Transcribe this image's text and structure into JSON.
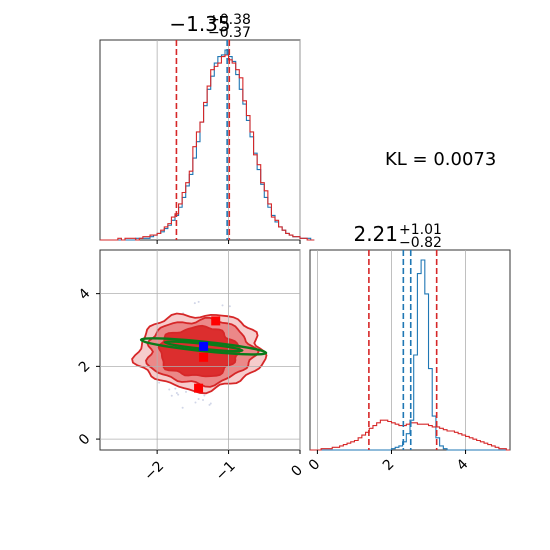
{
  "chart_data": [
    {
      "type": "histogram",
      "panel": "marginal-param1",
      "title": {
        "median": "−1.35",
        "plus": "+0.38",
        "minus": "−0.37"
      },
      "xlim": [
        -2.8,
        0
      ],
      "bin_edges_start": -2.8,
      "bin_width": 0.05,
      "series": [
        {
          "color": "#1f77b4",
          "values": [
            0,
            0,
            0,
            0,
            0,
            0,
            0,
            0,
            0,
            0,
            1,
            1,
            1,
            1,
            2,
            3,
            4,
            5,
            7,
            9,
            12,
            15,
            20,
            26,
            33,
            40,
            50,
            60,
            72,
            82,
            92,
            100,
            108,
            112,
            113,
            116,
            112,
            109,
            101,
            92,
            83,
            73,
            63,
            53,
            43,
            34,
            26,
            20,
            15,
            11,
            8,
            6,
            4,
            3,
            2,
            2,
            1,
            1,
            1,
            0
          ]
        },
        {
          "color": "#d62728",
          "values": [
            0,
            0,
            0,
            0,
            0,
            1,
            0,
            1,
            1,
            1,
            0,
            1,
            2,
            2,
            3,
            3,
            4,
            6,
            8,
            10,
            14,
            16,
            22,
            29,
            35,
            42,
            57,
            66,
            72,
            84,
            94,
            104,
            106,
            108,
            112,
            113,
            110,
            108,
            104,
            99,
            85,
            76,
            66,
            52,
            46,
            35,
            30,
            22,
            14,
            12,
            8,
            6,
            4,
            3,
            2,
            2,
            1,
            1,
            0,
            0
          ]
        }
      ],
      "quantiles": {
        "blue": [
          -1.02
        ],
        "red": [
          -1.73,
          -0.99
        ]
      }
    },
    {
      "type": "histogram",
      "panel": "marginal-param2",
      "title": {
        "median": "2.21",
        "plus": "+1.01",
        "minus": "−0.82"
      },
      "xlim": [
        -0.2,
        5.2
      ],
      "bin_edges_start": -0.2,
      "bin_width": 0.1,
      "series": [
        {
          "color": "#1f77b4",
          "values": [
            0,
            0,
            0,
            0,
            0,
            0,
            0,
            0,
            0,
            0,
            0,
            0,
            0,
            0,
            0,
            0,
            0,
            0,
            0,
            0,
            0,
            0,
            1,
            2,
            3,
            6,
            12,
            22,
            70,
            130,
            140,
            115,
            60,
            25,
            9,
            3,
            1,
            0,
            0,
            0,
            0,
            0,
            0,
            0,
            0,
            0,
            0,
            0,
            0,
            0,
            0,
            0,
            0,
            0
          ]
        },
        {
          "color": "#d62728",
          "values": [
            0,
            0,
            0,
            1,
            1,
            1,
            2,
            2,
            3,
            4,
            5,
            6,
            7,
            9,
            11,
            13,
            16,
            18,
            20,
            22,
            22,
            21,
            20,
            19,
            18,
            18,
            19,
            20,
            20,
            19,
            19,
            19,
            18,
            17,
            17,
            16,
            15,
            14,
            14,
            13,
            12,
            11,
            10,
            9,
            8,
            7,
            6,
            5,
            4,
            3,
            2,
            1,
            1,
            0
          ]
        }
      ],
      "quantiles": {
        "blue": [
          2.32,
          2.52
        ],
        "red": [
          1.39,
          3.22
        ]
      }
    },
    {
      "type": "scatter-contour",
      "panel": "joint",
      "xlim": [
        -2.8,
        0
      ],
      "ylim": [
        -0.3,
        5.2
      ],
      "contours_red": [
        {
          "center": [
            -1.4,
            2.4
          ],
          "rx": 0.88,
          "ry": 2.0,
          "fill": "#f6cccc"
        },
        {
          "center": [
            -1.4,
            2.4
          ],
          "rx": 0.74,
          "ry": 1.7,
          "fill": "#eb8888"
        },
        {
          "center": [
            -1.42,
            2.4
          ],
          "rx": 0.55,
          "ry": 1.3,
          "fill": "#dc2e2e"
        }
      ],
      "ellipse_green": {
        "center": [
          -1.35,
          2.55
        ],
        "rx": 0.88,
        "ry": 0.13,
        "rotation_deg": 6
      },
      "red_markers": [
        [
          -1.18,
          3.25
        ],
        [
          -1.35,
          2.25
        ],
        [
          -1.42,
          1.4
        ]
      ],
      "blue_marker": [
        -1.35,
        2.55
      ]
    }
  ],
  "kl": "KL = 0.0073",
  "axes": {
    "x_param1_ticks": [
      "−2",
      "−1",
      "0"
    ],
    "x_param1_tick_values": [
      -2,
      -1,
      0
    ],
    "y_param2_ticks": [
      "0",
      "2",
      "4"
    ],
    "y_param2_tick_values": [
      0,
      2,
      4
    ],
    "x_param2_ticks": [
      "0",
      "2",
      "4"
    ],
    "x_param2_tick_values": [
      0,
      2,
      4
    ]
  },
  "colors": {
    "blue": "#1f77b4",
    "red": "#d62728",
    "green": "#0a7a1a",
    "grid": "#b0b0b0"
  }
}
